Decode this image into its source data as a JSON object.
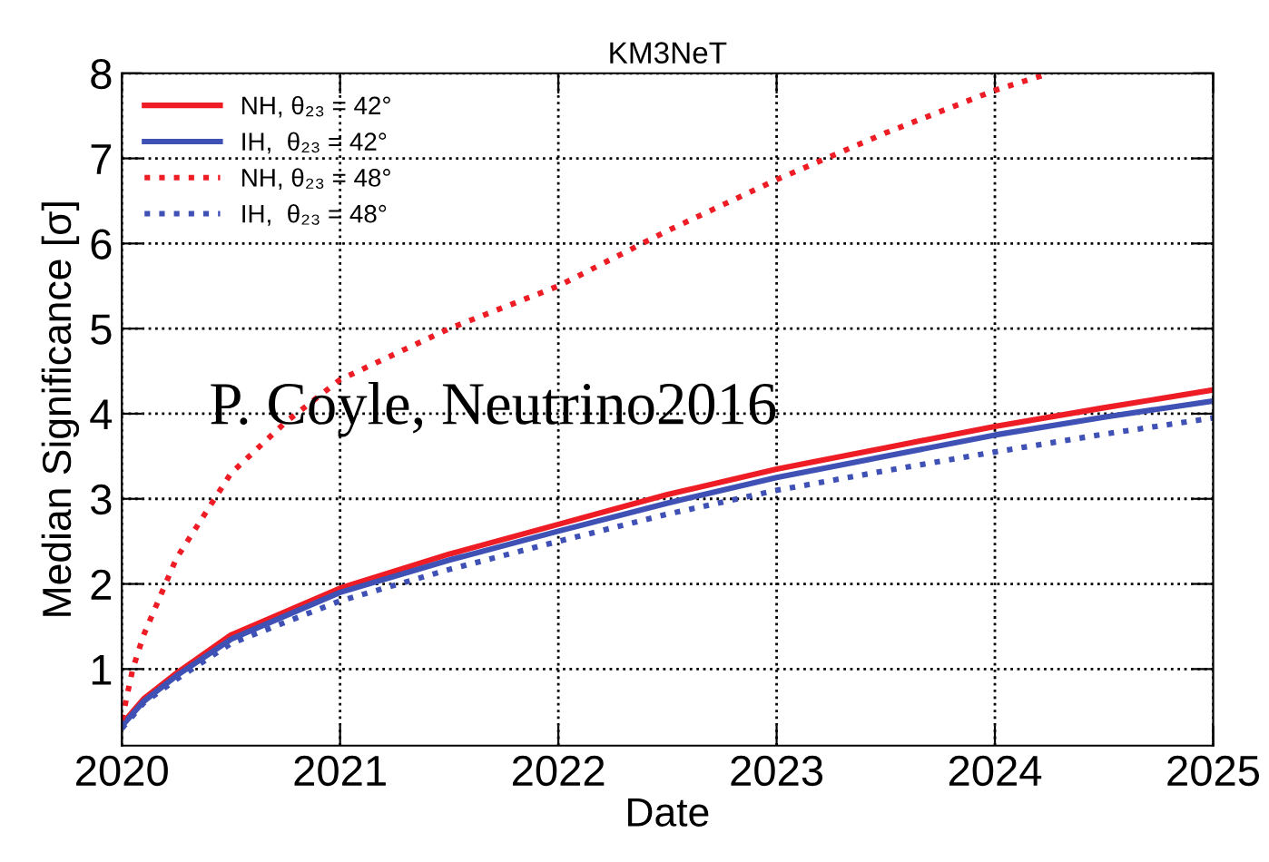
{
  "chart_data": {
    "type": "line",
    "title": "KM3NeT",
    "xlabel": "Date",
    "ylabel": "Median Significance [σ]",
    "xlim": [
      2020,
      2025
    ],
    "ylim": [
      0.1,
      8
    ],
    "xticks": [
      2020,
      2021,
      2022,
      2023,
      2024,
      2025
    ],
    "yticks": [
      1,
      2,
      3,
      4,
      5,
      6,
      7,
      8
    ],
    "grid": true,
    "legend": "top left",
    "marker": "none",
    "annotations": [
      "P. Coyle, Neutrino2016"
    ],
    "series": [
      {
        "name": "NH, θ₂₃ = 42°",
        "color": "#ee1c25",
        "line_style": "solid",
        "x": [
          2020,
          2020.1,
          2020.25,
          2020.5,
          2021,
          2021.5,
          2022,
          2022.5,
          2023,
          2023.5,
          2024,
          2024.5,
          2025
        ],
        "values": [
          0.35,
          0.65,
          0.95,
          1.4,
          1.95,
          2.35,
          2.7,
          3.05,
          3.35,
          3.6,
          3.85,
          4.07,
          4.28
        ]
      },
      {
        "name": "IH,  θ₂₃ = 42°",
        "color": "#3f51b5",
        "line_style": "solid",
        "x": [
          2020,
          2020.1,
          2020.25,
          2020.5,
          2021,
          2021.5,
          2022,
          2022.5,
          2023,
          2023.5,
          2024,
          2024.5,
          2025
        ],
        "values": [
          0.33,
          0.62,
          0.92,
          1.35,
          1.9,
          2.28,
          2.62,
          2.95,
          3.25,
          3.5,
          3.75,
          3.96,
          4.15
        ]
      },
      {
        "name": "NH, θ₂₃ = 48°",
        "color": "#ee1c25",
        "line_style": "dotted",
        "x": [
          2020,
          2020.05,
          2020.1,
          2020.25,
          2020.5,
          2020.75,
          2021,
          2021.5,
          2022,
          2022.5,
          2023,
          2023.5,
          2024,
          2024.25
        ],
        "values": [
          0.4,
          1.0,
          1.4,
          2.3,
          3.3,
          3.9,
          4.4,
          5.0,
          5.5,
          6.15,
          6.75,
          7.3,
          7.8,
          8.0
        ]
      },
      {
        "name": "IH,  θ₂₃ = 48°",
        "color": "#3f51b5",
        "line_style": "dotted",
        "x": [
          2020,
          2020.1,
          2020.25,
          2020.5,
          2021,
          2021.5,
          2022,
          2022.5,
          2023,
          2023.5,
          2024,
          2024.5,
          2025
        ],
        "values": [
          0.3,
          0.6,
          0.88,
          1.3,
          1.8,
          2.17,
          2.5,
          2.82,
          3.1,
          3.33,
          3.55,
          3.76,
          3.95
        ]
      }
    ]
  }
}
